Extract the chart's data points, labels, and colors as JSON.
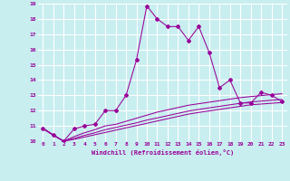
{
  "xlabel": "Windchill (Refroidissement éolien,°C)",
  "background_color": "#c8eef0",
  "grid_color": "#ffffff",
  "line_color": "#990099",
  "xlim": [
    -0.5,
    23.5
  ],
  "ylim": [
    10,
    19
  ],
  "yticks": [
    10,
    11,
    12,
    13,
    14,
    15,
    16,
    17,
    18,
    19
  ],
  "xticks": [
    0,
    1,
    2,
    3,
    4,
    5,
    6,
    7,
    8,
    9,
    10,
    11,
    12,
    13,
    14,
    15,
    16,
    17,
    18,
    19,
    20,
    21,
    22,
    23
  ],
  "line1_x": [
    0,
    1,
    2,
    3,
    4,
    5,
    6,
    7,
    8,
    9,
    10,
    11,
    12,
    13,
    14,
    15,
    16,
    17,
    18,
    19,
    20,
    21,
    22,
    23
  ],
  "line1_y": [
    10.8,
    10.4,
    10.0,
    10.8,
    11.0,
    11.1,
    12.0,
    12.0,
    13.0,
    15.3,
    18.85,
    18.0,
    17.5,
    17.5,
    16.6,
    17.5,
    15.8,
    13.5,
    14.0,
    12.5,
    12.5,
    13.2,
    13.0,
    12.6
  ],
  "line2_x": [
    0,
    1,
    2,
    3,
    4,
    5,
    6,
    7,
    8,
    9,
    10,
    11,
    12,
    13,
    14,
    15,
    16,
    17,
    18,
    19,
    20,
    21,
    22,
    23
  ],
  "line2_y": [
    10.85,
    10.4,
    10.0,
    10.3,
    10.55,
    10.75,
    11.0,
    11.1,
    11.3,
    11.5,
    11.7,
    11.9,
    12.05,
    12.2,
    12.35,
    12.45,
    12.55,
    12.65,
    12.75,
    12.85,
    12.92,
    12.98,
    13.05,
    13.1
  ],
  "line3_x": [
    0,
    1,
    2,
    3,
    4,
    5,
    6,
    7,
    8,
    9,
    10,
    11,
    12,
    13,
    14,
    15,
    16,
    17,
    18,
    19,
    20,
    21,
    22,
    23
  ],
  "line3_y": [
    10.85,
    10.4,
    10.0,
    10.18,
    10.38,
    10.55,
    10.75,
    10.9,
    11.05,
    11.2,
    11.38,
    11.52,
    11.67,
    11.82,
    11.97,
    12.08,
    12.18,
    12.28,
    12.38,
    12.48,
    12.57,
    12.62,
    12.68,
    12.73
  ],
  "line4_x": [
    0,
    1,
    2,
    3,
    4,
    5,
    6,
    7,
    8,
    9,
    10,
    11,
    12,
    13,
    14,
    15,
    16,
    17,
    18,
    19,
    20,
    21,
    22,
    23
  ],
  "line4_y": [
    10.85,
    10.4,
    10.0,
    10.12,
    10.27,
    10.42,
    10.57,
    10.72,
    10.87,
    11.02,
    11.17,
    11.32,
    11.47,
    11.62,
    11.77,
    11.88,
    11.98,
    12.08,
    12.18,
    12.28,
    12.38,
    12.43,
    12.48,
    12.53
  ]
}
